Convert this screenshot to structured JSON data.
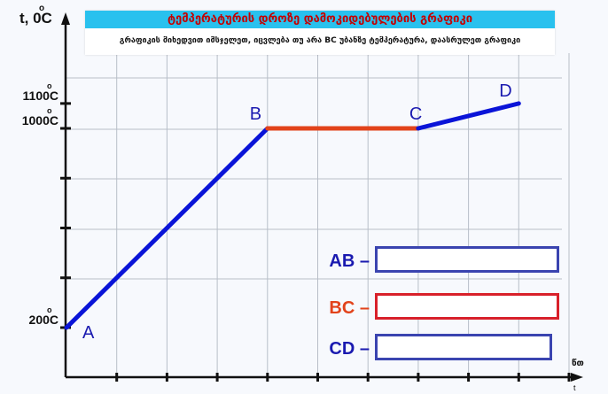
{
  "banner": {
    "title": "ტემპერატურის დროზე დამოკიდებულების გრაფიკი",
    "instruction": "გრაფიკის მიხედვით იმსჯელეთ, იცვლება თუ არა BC უბანზე ტემპერატურა, დაასრულეთ გრაფიკი"
  },
  "chart_data": {
    "type": "line",
    "ylabel": "t, 0C",
    "xlabel": "წთ",
    "x_axis_end_label": "t",
    "y_tick_labels": [
      {
        "text": "1100C",
        "value": 1100
      },
      {
        "text": "1000C",
        "value": 1000
      },
      {
        "text": "200C",
        "value": 200
      }
    ],
    "y_ticks": [
      200,
      400,
      600,
      800,
      1000,
      1100
    ],
    "ylim": [
      140,
      1260
    ],
    "xlim": [
      0,
      10
    ],
    "x_ticks": [
      1,
      2,
      3,
      4,
      5,
      6,
      7,
      8,
      9,
      10
    ],
    "grid": true,
    "series": [
      {
        "name": "AB",
        "color": "#0a14d8",
        "points": [
          [
            0,
            200
          ],
          [
            4,
            1000
          ]
        ]
      },
      {
        "name": "BC",
        "color": "#e2431b",
        "points": [
          [
            4,
            1000
          ],
          [
            7,
            1000
          ]
        ]
      },
      {
        "name": "CD",
        "color": "#0a14d8",
        "points": [
          [
            7,
            1000
          ],
          [
            9,
            1100
          ]
        ]
      }
    ],
    "point_labels": [
      {
        "text": "A",
        "x": 0,
        "y": 200
      },
      {
        "text": "B",
        "x": 4,
        "y": 1000
      },
      {
        "text": "C",
        "x": 7,
        "y": 1000
      },
      {
        "text": "D",
        "x": 9,
        "y": 1100
      }
    ]
  },
  "answers": [
    {
      "label": "AB –",
      "value": "",
      "color": "#1a1ab0",
      "border": "#3a44b0"
    },
    {
      "label": "BC –",
      "value": "",
      "color": "#e2431b",
      "border": "#d8202a"
    },
    {
      "label": "CD –",
      "value": "",
      "color": "#1a1ab0",
      "border": "#3a44b0"
    }
  ]
}
